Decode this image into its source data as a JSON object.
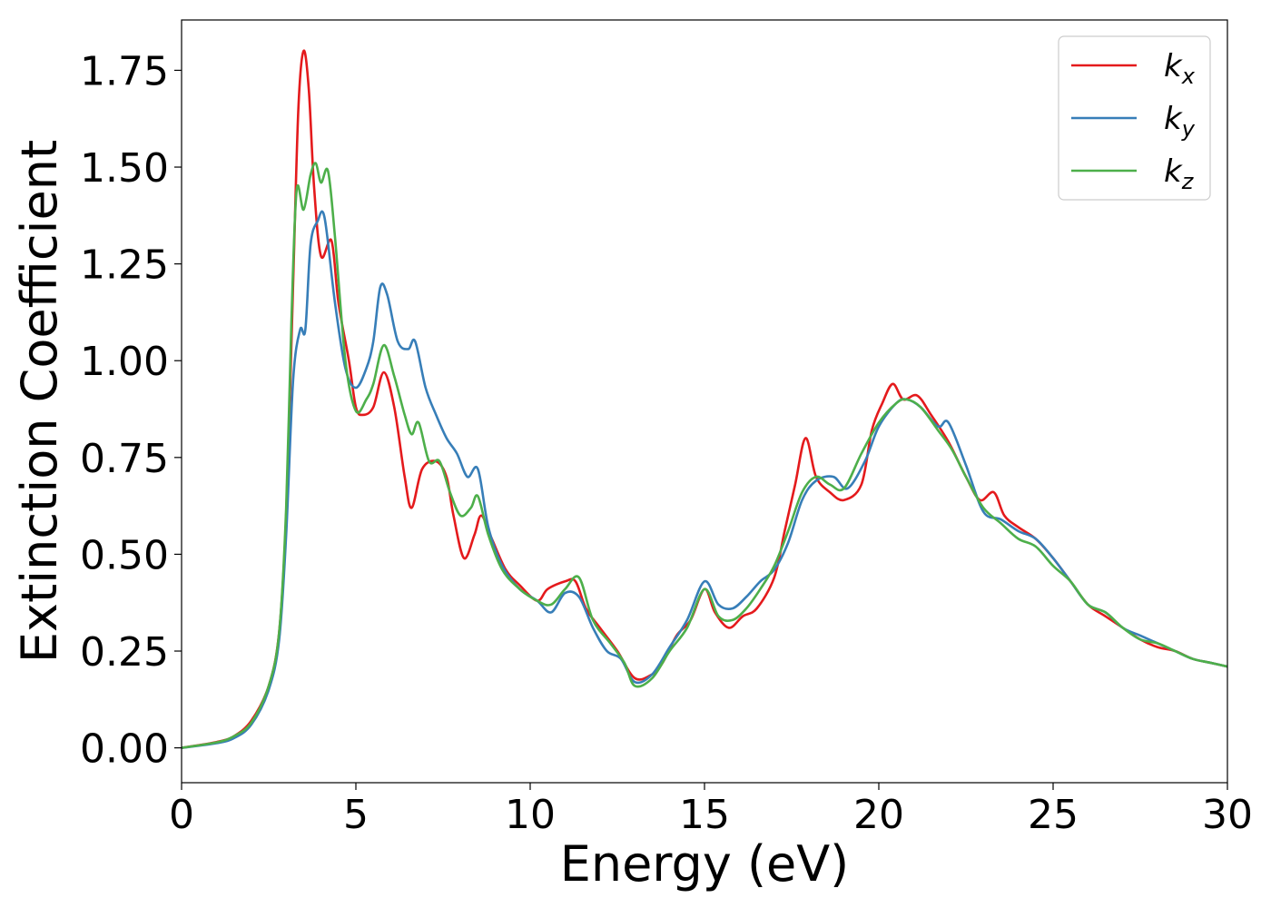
{
  "chart_data": {
    "type": "line",
    "title": "",
    "xlabel": "Energy (eV)",
    "ylabel": "Extinction Coefficient",
    "xlim": [
      0,
      30
    ],
    "ylim": [
      -0.09,
      1.88
    ],
    "xticks": [
      0,
      5,
      10,
      15,
      20,
      25,
      30
    ],
    "xtick_labels": [
      "0",
      "5",
      "10",
      "15",
      "20",
      "25",
      "30"
    ],
    "yticks": [
      0.0,
      0.25,
      0.5,
      0.75,
      1.0,
      1.25,
      1.5,
      1.75
    ],
    "ytick_labels": [
      "0.00",
      "0.25",
      "0.50",
      "0.75",
      "1.00",
      "1.25",
      "1.50",
      "1.75"
    ],
    "grid": false,
    "legend_position": "top-right",
    "series": [
      {
        "name": "k_x",
        "label_base": "k",
        "label_sub": "x",
        "color": "#e41a1c",
        "points": [
          [
            0,
            0
          ],
          [
            1,
            0.015
          ],
          [
            1.5,
            0.03
          ],
          [
            2,
            0.07
          ],
          [
            2.5,
            0.16
          ],
          [
            2.8,
            0.3
          ],
          [
            3.0,
            0.6
          ],
          [
            3.2,
            1.2
          ],
          [
            3.35,
            1.65
          ],
          [
            3.5,
            1.8
          ],
          [
            3.65,
            1.7
          ],
          [
            3.8,
            1.45
          ],
          [
            4.0,
            1.27
          ],
          [
            4.3,
            1.31
          ],
          [
            4.5,
            1.15
          ],
          [
            4.8,
            1.0
          ],
          [
            5.0,
            0.88
          ],
          [
            5.2,
            0.86
          ],
          [
            5.5,
            0.88
          ],
          [
            5.8,
            0.97
          ],
          [
            6.1,
            0.88
          ],
          [
            6.4,
            0.7
          ],
          [
            6.6,
            0.62
          ],
          [
            6.9,
            0.72
          ],
          [
            7.3,
            0.74
          ],
          [
            7.6,
            0.7
          ],
          [
            7.8,
            0.6
          ],
          [
            8.1,
            0.49
          ],
          [
            8.4,
            0.55
          ],
          [
            8.6,
            0.6
          ],
          [
            8.9,
            0.54
          ],
          [
            9.3,
            0.46
          ],
          [
            9.7,
            0.42
          ],
          [
            10.2,
            0.38
          ],
          [
            10.5,
            0.41
          ],
          [
            11.0,
            0.43
          ],
          [
            11.3,
            0.43
          ],
          [
            11.6,
            0.36
          ],
          [
            12.0,
            0.31
          ],
          [
            12.5,
            0.25
          ],
          [
            13.0,
            0.18
          ],
          [
            13.5,
            0.19
          ],
          [
            13.8,
            0.22
          ],
          [
            14.2,
            0.29
          ],
          [
            14.6,
            0.33
          ],
          [
            15.0,
            0.41
          ],
          [
            15.3,
            0.35
          ],
          [
            15.7,
            0.31
          ],
          [
            16.1,
            0.34
          ],
          [
            16.5,
            0.36
          ],
          [
            17.0,
            0.44
          ],
          [
            17.3,
            0.56
          ],
          [
            17.6,
            0.68
          ],
          [
            17.9,
            0.8
          ],
          [
            18.2,
            0.7
          ],
          [
            18.6,
            0.66
          ],
          [
            19.0,
            0.64
          ],
          [
            19.5,
            0.68
          ],
          [
            19.8,
            0.82
          ],
          [
            20.1,
            0.89
          ],
          [
            20.4,
            0.94
          ],
          [
            20.7,
            0.9
          ],
          [
            21.1,
            0.91
          ],
          [
            21.5,
            0.86
          ],
          [
            22.0,
            0.79
          ],
          [
            22.5,
            0.7
          ],
          [
            22.9,
            0.64
          ],
          [
            23.3,
            0.66
          ],
          [
            23.6,
            0.6
          ],
          [
            24.0,
            0.57
          ],
          [
            24.5,
            0.54
          ],
          [
            25.0,
            0.49
          ],
          [
            25.5,
            0.43
          ],
          [
            26.0,
            0.37
          ],
          [
            26.5,
            0.34
          ],
          [
            27.0,
            0.31
          ],
          [
            27.5,
            0.28
          ],
          [
            28.0,
            0.26
          ],
          [
            28.5,
            0.25
          ],
          [
            29.0,
            0.23
          ],
          [
            29.5,
            0.22
          ],
          [
            30.0,
            0.21
          ]
        ]
      },
      {
        "name": "k_y",
        "label_base": "k",
        "label_sub": "y",
        "color": "#377eb8",
        "points": [
          [
            0,
            0
          ],
          [
            1,
            0.012
          ],
          [
            1.5,
            0.025
          ],
          [
            2,
            0.06
          ],
          [
            2.5,
            0.15
          ],
          [
            2.8,
            0.28
          ],
          [
            3.0,
            0.55
          ],
          [
            3.2,
            0.95
          ],
          [
            3.4,
            1.08
          ],
          [
            3.55,
            1.08
          ],
          [
            3.7,
            1.3
          ],
          [
            3.9,
            1.36
          ],
          [
            4.1,
            1.37
          ],
          [
            4.4,
            1.15
          ],
          [
            4.7,
            0.98
          ],
          [
            5.0,
            0.93
          ],
          [
            5.3,
            0.98
          ],
          [
            5.5,
            1.05
          ],
          [
            5.7,
            1.19
          ],
          [
            5.9,
            1.17
          ],
          [
            6.2,
            1.05
          ],
          [
            6.5,
            1.03
          ],
          [
            6.7,
            1.05
          ],
          [
            7.0,
            0.93
          ],
          [
            7.3,
            0.86
          ],
          [
            7.6,
            0.8
          ],
          [
            7.9,
            0.76
          ],
          [
            8.2,
            0.7
          ],
          [
            8.5,
            0.72
          ],
          [
            8.8,
            0.57
          ],
          [
            9.2,
            0.47
          ],
          [
            9.7,
            0.41
          ],
          [
            10.2,
            0.38
          ],
          [
            10.6,
            0.35
          ],
          [
            11.0,
            0.4
          ],
          [
            11.4,
            0.39
          ],
          [
            11.8,
            0.31
          ],
          [
            12.2,
            0.25
          ],
          [
            12.6,
            0.23
          ],
          [
            13.0,
            0.17
          ],
          [
            13.5,
            0.19
          ],
          [
            14.0,
            0.26
          ],
          [
            14.5,
            0.33
          ],
          [
            15.0,
            0.43
          ],
          [
            15.4,
            0.37
          ],
          [
            15.8,
            0.36
          ],
          [
            16.2,
            0.39
          ],
          [
            16.6,
            0.43
          ],
          [
            17.0,
            0.46
          ],
          [
            17.4,
            0.53
          ],
          [
            17.8,
            0.64
          ],
          [
            18.2,
            0.69
          ],
          [
            18.7,
            0.7
          ],
          [
            19.1,
            0.67
          ],
          [
            19.6,
            0.74
          ],
          [
            20.0,
            0.83
          ],
          [
            20.5,
            0.89
          ],
          [
            20.8,
            0.9
          ],
          [
            21.2,
            0.88
          ],
          [
            21.7,
            0.83
          ],
          [
            22.0,
            0.84
          ],
          [
            22.5,
            0.73
          ],
          [
            23.0,
            0.61
          ],
          [
            23.5,
            0.59
          ],
          [
            24.0,
            0.56
          ],
          [
            24.5,
            0.54
          ],
          [
            25.0,
            0.49
          ],
          [
            25.5,
            0.43
          ],
          [
            26.0,
            0.37
          ],
          [
            26.5,
            0.35
          ],
          [
            27.0,
            0.31
          ],
          [
            27.5,
            0.29
          ],
          [
            28.0,
            0.27
          ],
          [
            28.5,
            0.25
          ],
          [
            29.0,
            0.23
          ],
          [
            29.5,
            0.22
          ],
          [
            30.0,
            0.21
          ]
        ]
      },
      {
        "name": "k_z",
        "label_base": "k",
        "label_sub": "z",
        "color": "#4daf4a",
        "points": [
          [
            0,
            0
          ],
          [
            1,
            0.014
          ],
          [
            1.5,
            0.03
          ],
          [
            2,
            0.065
          ],
          [
            2.5,
            0.16
          ],
          [
            2.8,
            0.3
          ],
          [
            3.0,
            0.62
          ],
          [
            3.15,
            1.1
          ],
          [
            3.3,
            1.44
          ],
          [
            3.5,
            1.39
          ],
          [
            3.7,
            1.48
          ],
          [
            3.85,
            1.51
          ],
          [
            4.0,
            1.46
          ],
          [
            4.2,
            1.49
          ],
          [
            4.4,
            1.32
          ],
          [
            4.7,
            1.0
          ],
          [
            5.0,
            0.87
          ],
          [
            5.3,
            0.9
          ],
          [
            5.5,
            0.94
          ],
          [
            5.8,
            1.04
          ],
          [
            6.1,
            0.96
          ],
          [
            6.4,
            0.86
          ],
          [
            6.6,
            0.81
          ],
          [
            6.8,
            0.84
          ],
          [
            7.1,
            0.74
          ],
          [
            7.4,
            0.74
          ],
          [
            7.7,
            0.66
          ],
          [
            8.0,
            0.6
          ],
          [
            8.3,
            0.62
          ],
          [
            8.5,
            0.65
          ],
          [
            8.8,
            0.55
          ],
          [
            9.2,
            0.46
          ],
          [
            9.7,
            0.41
          ],
          [
            10.2,
            0.38
          ],
          [
            10.6,
            0.37
          ],
          [
            11.0,
            0.41
          ],
          [
            11.4,
            0.44
          ],
          [
            11.8,
            0.33
          ],
          [
            12.3,
            0.27
          ],
          [
            12.7,
            0.22
          ],
          [
            13.0,
            0.16
          ],
          [
            13.5,
            0.18
          ],
          [
            14.0,
            0.25
          ],
          [
            14.5,
            0.31
          ],
          [
            15.0,
            0.41
          ],
          [
            15.4,
            0.34
          ],
          [
            15.8,
            0.33
          ],
          [
            16.2,
            0.36
          ],
          [
            16.6,
            0.41
          ],
          [
            17.0,
            0.47
          ],
          [
            17.4,
            0.56
          ],
          [
            17.8,
            0.66
          ],
          [
            18.2,
            0.7
          ],
          [
            18.6,
            0.68
          ],
          [
            19.0,
            0.67
          ],
          [
            19.5,
            0.76
          ],
          [
            20.0,
            0.84
          ],
          [
            20.5,
            0.89
          ],
          [
            20.8,
            0.9
          ],
          [
            21.2,
            0.88
          ],
          [
            21.7,
            0.82
          ],
          [
            22.1,
            0.77
          ],
          [
            22.5,
            0.7
          ],
          [
            23.0,
            0.62
          ],
          [
            23.5,
            0.58
          ],
          [
            24.0,
            0.54
          ],
          [
            24.5,
            0.52
          ],
          [
            25.0,
            0.47
          ],
          [
            25.5,
            0.43
          ],
          [
            26.0,
            0.37
          ],
          [
            26.5,
            0.35
          ],
          [
            27.0,
            0.31
          ],
          [
            27.5,
            0.28
          ],
          [
            28.0,
            0.27
          ],
          [
            28.5,
            0.25
          ],
          [
            29.0,
            0.23
          ],
          [
            29.5,
            0.22
          ],
          [
            30.0,
            0.21
          ]
        ]
      }
    ]
  }
}
